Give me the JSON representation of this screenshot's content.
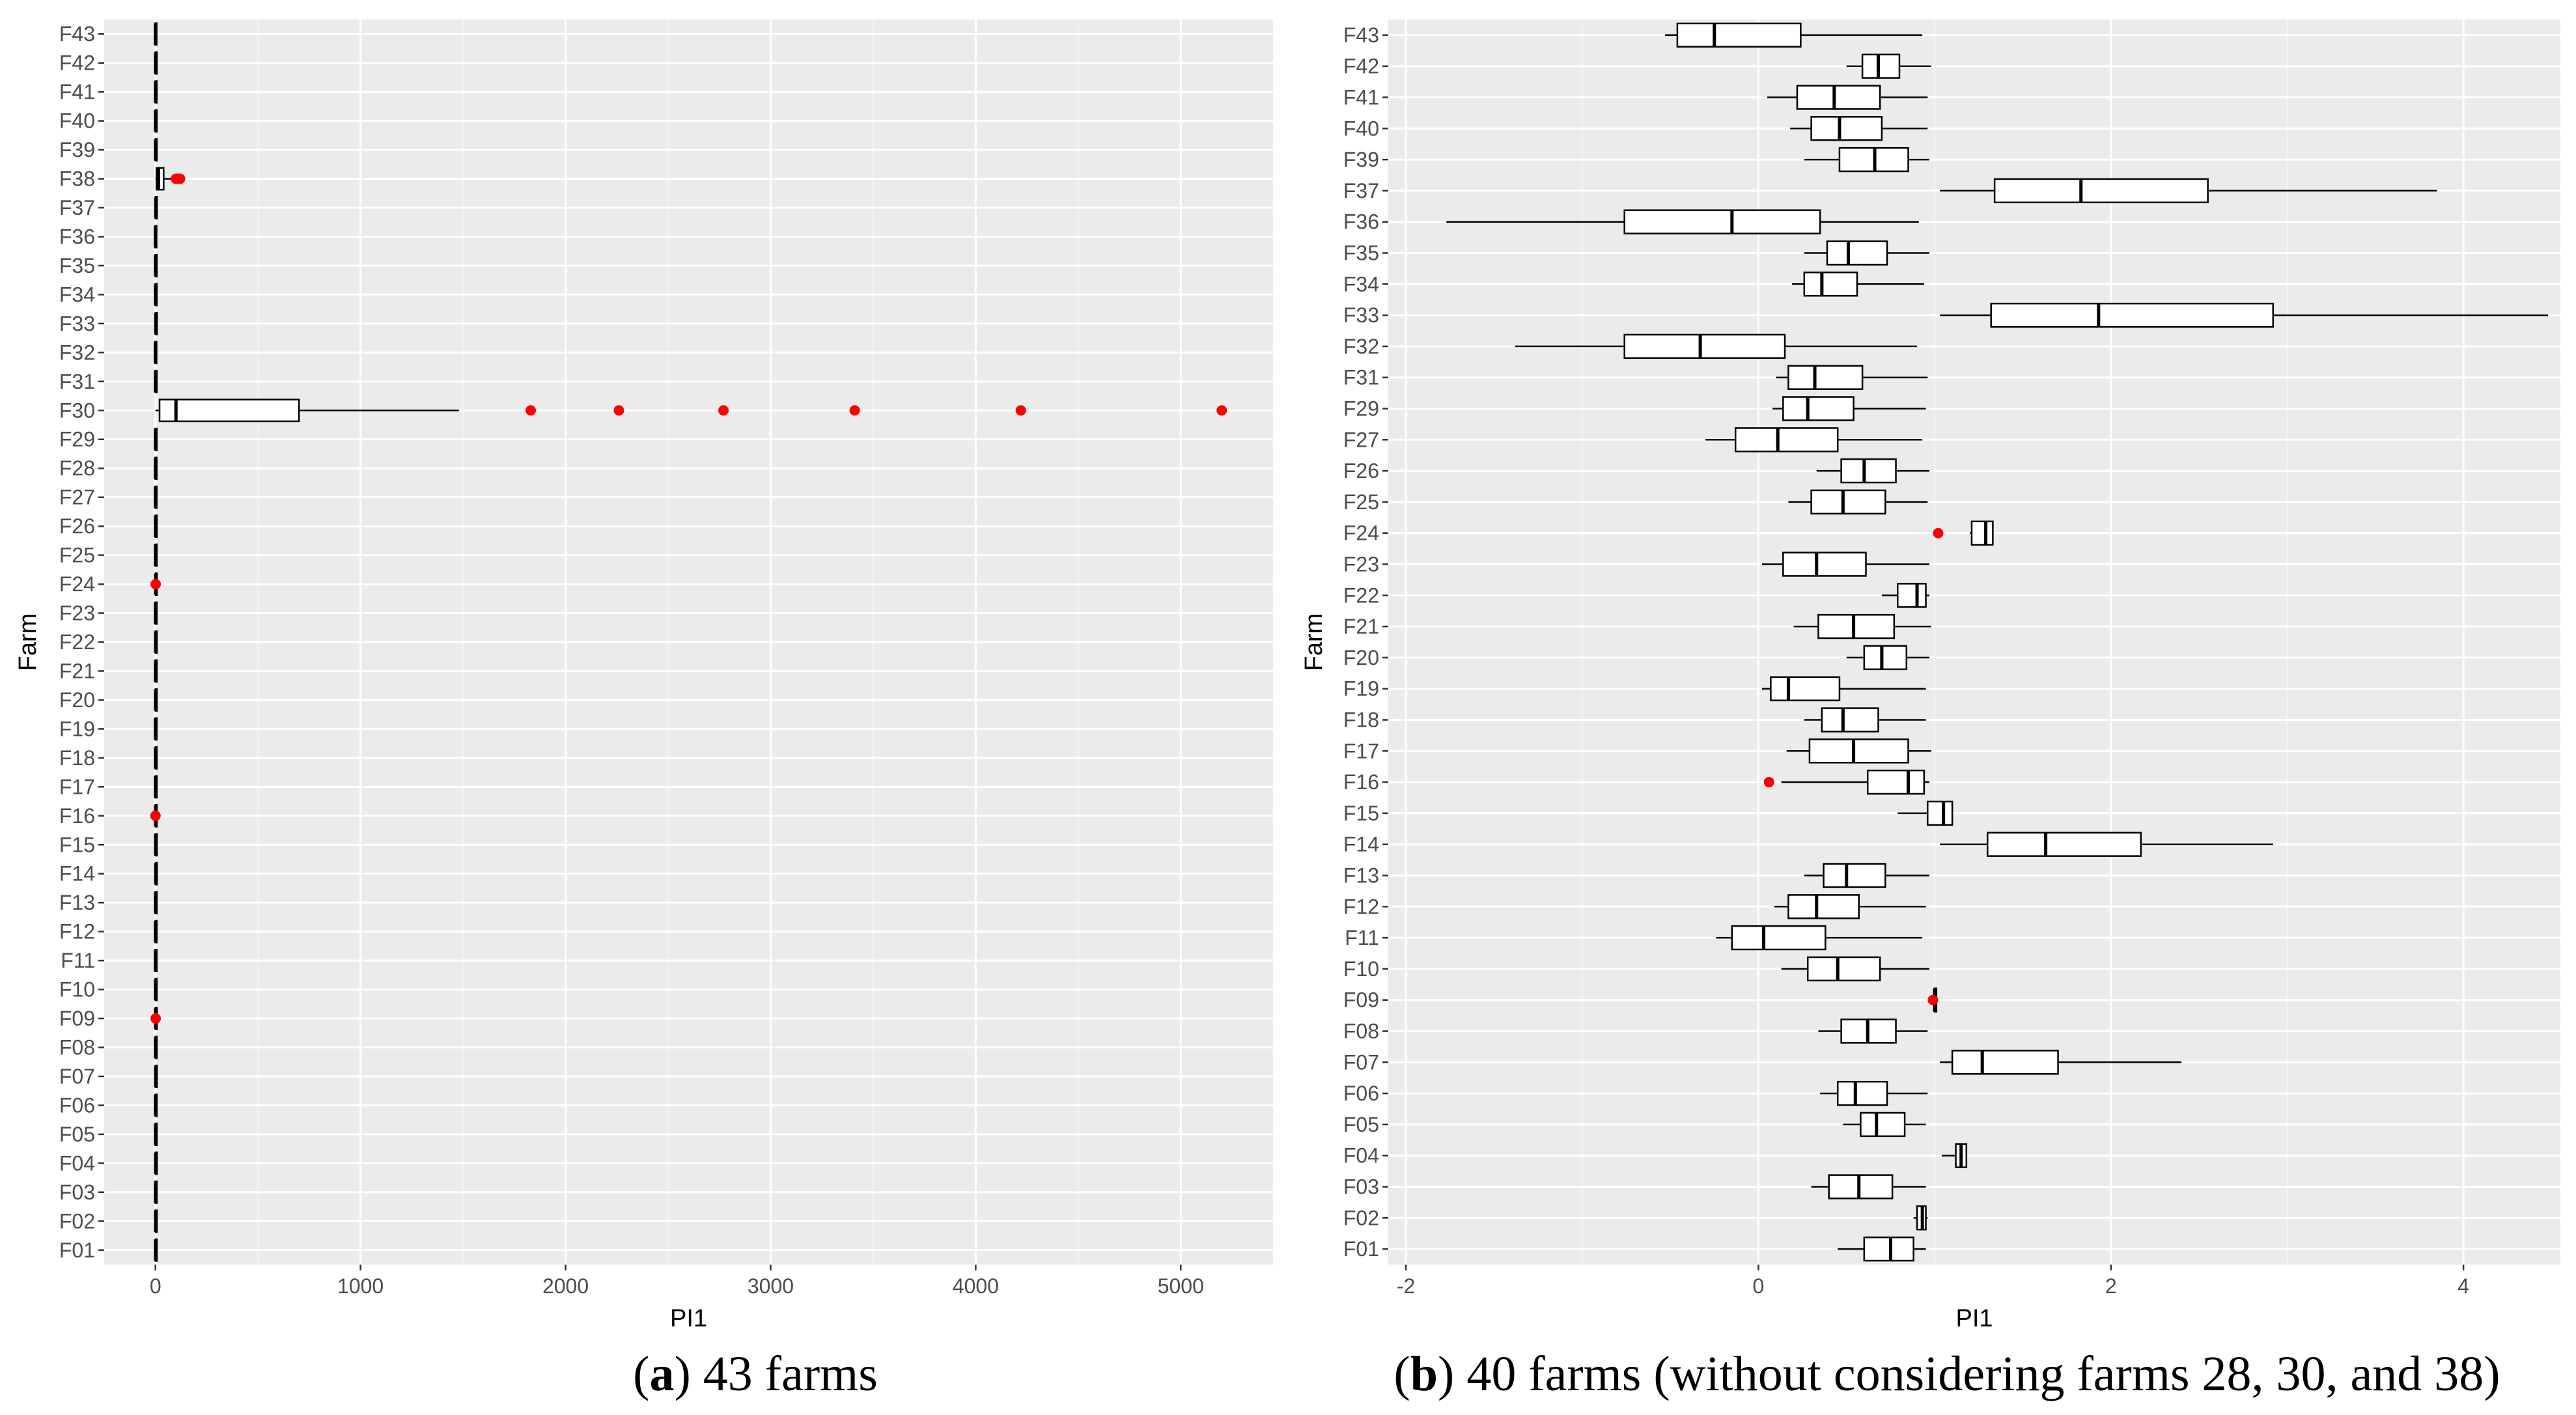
{
  "chart_data": [
    {
      "type": "boxplot",
      "orientation": "horizontal",
      "xlabel": "PI1",
      "ylabel": "Farm",
      "xlim": [
        -250,
        5450
      ],
      "xticks": [
        "0",
        "1000",
        "2000",
        "3000",
        "4000",
        "5000"
      ],
      "xtick_values": [
        0,
        1000,
        2000,
        3000,
        4000,
        5000
      ],
      "caption_letter": "a",
      "caption_text": " 43 farms",
      "categories": [
        "F01",
        "F02",
        "F03",
        "F04",
        "F05",
        "F06",
        "F07",
        "F08",
        "F09",
        "F10",
        "F11",
        "F12",
        "F13",
        "F14",
        "F15",
        "F16",
        "F17",
        "F18",
        "F19",
        "F20",
        "F21",
        "F22",
        "F23",
        "F24",
        "F25",
        "F26",
        "F27",
        "F28",
        "F29",
        "F30",
        "F31",
        "F32",
        "F33",
        "F34",
        "F35",
        "F36",
        "F37",
        "F38",
        "F39",
        "F40",
        "F41",
        "F42",
        "F43"
      ],
      "boxes": [
        {
          "farm": "F01",
          "min": -0.5,
          "q1": 0.5,
          "median": 0.7,
          "q3": 0.9,
          "max": 1.0,
          "outliers": []
        },
        {
          "farm": "F02",
          "min": 0.8,
          "q1": 0.9,
          "median": 0.92,
          "q3": 0.95,
          "max": 1.0,
          "outliers": []
        },
        {
          "farm": "F03",
          "min": 0.2,
          "q1": 0.4,
          "median": 0.5,
          "q3": 0.7,
          "max": 0.9,
          "outliers": []
        },
        {
          "farm": "F04",
          "min": 1.0,
          "q1": 1.1,
          "median": 1.15,
          "q3": 1.2,
          "max": 1.3,
          "outliers": []
        },
        {
          "farm": "F05",
          "min": 0.4,
          "q1": 0.5,
          "median": 0.6,
          "q3": 0.7,
          "max": 0.8,
          "outliers": []
        },
        {
          "farm": "F06",
          "min": 0.3,
          "q1": 0.4,
          "median": 0.5,
          "q3": 0.6,
          "max": 0.9,
          "outliers": []
        },
        {
          "farm": "F07",
          "min": 1.0,
          "q1": 1.1,
          "median": 1.3,
          "q3": 1.7,
          "max": 2.4,
          "outliers": []
        },
        {
          "farm": "F08",
          "min": 0.3,
          "q1": 0.4,
          "median": 0.6,
          "q3": 0.7,
          "max": 0.9,
          "outliers": []
        },
        {
          "farm": "F09",
          "min": 1.0,
          "q1": 1.0,
          "median": 1.0,
          "q3": 1.0,
          "max": 1.0,
          "outliers": [
            1.0
          ]
        },
        {
          "farm": "F10",
          "min": 0.1,
          "q1": 0.3,
          "median": 0.4,
          "q3": 0.6,
          "max": 0.9,
          "outliers": []
        },
        {
          "farm": "F11",
          "min": -0.3,
          "q1": -0.1,
          "median": 0.0,
          "q3": 0.3,
          "max": 0.9,
          "outliers": []
        },
        {
          "farm": "F12",
          "min": 0.0,
          "q1": 0.1,
          "median": 0.3,
          "q3": 0.5,
          "max": 0.9,
          "outliers": []
        },
        {
          "farm": "F13",
          "min": 0.2,
          "q1": 0.4,
          "median": 0.5,
          "q3": 0.6,
          "max": 0.9,
          "outliers": []
        },
        {
          "farm": "F14",
          "min": 1.0,
          "q1": 1.3,
          "median": 1.6,
          "q3": 2.2,
          "max": 2.9,
          "outliers": []
        },
        {
          "farm": "F15",
          "min": 0.8,
          "q1": 0.9,
          "median": 1.0,
          "q3": 1.1,
          "max": 1.1,
          "outliers": []
        },
        {
          "farm": "F16",
          "min": 0.1,
          "q1": 0.6,
          "median": 0.8,
          "q3": 0.9,
          "max": 1.0,
          "outliers": [
            0.05
          ]
        },
        {
          "farm": "F17",
          "min": 0.1,
          "q1": 0.3,
          "median": 0.5,
          "q3": 0.8,
          "max": 1.0,
          "outliers": []
        },
        {
          "farm": "F18",
          "min": 0.2,
          "q1": 0.3,
          "median": 0.4,
          "q3": 0.6,
          "max": 0.9,
          "outliers": []
        },
        {
          "farm": "F19",
          "min": 0.0,
          "q1": 0.0,
          "median": 0.1,
          "q3": 0.4,
          "max": 0.9,
          "outliers": []
        },
        {
          "farm": "F20",
          "min": 0.5,
          "q1": 0.6,
          "median": 0.7,
          "q3": 0.8,
          "max": 0.9,
          "outliers": []
        },
        {
          "farm": "F21",
          "min": 0.2,
          "q1": 0.3,
          "median": 0.5,
          "q3": 0.7,
          "max": 1.0,
          "outliers": []
        },
        {
          "farm": "F22",
          "min": 0.7,
          "q1": 0.8,
          "median": 0.9,
          "q3": 0.9,
          "max": 1.0,
          "outliers": []
        },
        {
          "farm": "F23",
          "min": 0.0,
          "q1": 0.1,
          "median": 0.3,
          "q3": 0.6,
          "max": 0.9,
          "outliers": []
        },
        {
          "farm": "F24",
          "min": 1.2,
          "q1": 1.2,
          "median": 1.3,
          "q3": 1.3,
          "max": 1.3,
          "outliers": [
            1.0
          ]
        },
        {
          "farm": "F25",
          "min": 0.2,
          "q1": 0.3,
          "median": 0.5,
          "q3": 0.7,
          "max": 0.9,
          "outliers": []
        },
        {
          "farm": "F26",
          "min": 0.3,
          "q1": 0.5,
          "median": 0.6,
          "q3": 0.7,
          "max": 0.9,
          "outliers": []
        },
        {
          "farm": "F27",
          "min": -0.3,
          "q1": -0.1,
          "median": 0.1,
          "q3": 0.4,
          "max": 0.9,
          "outliers": []
        },
        {
          "farm": "F28",
          "min": 0.0,
          "q1": 0.0,
          "median": 0.0,
          "q3": 0.0,
          "max": 0.0,
          "outliers": []
        },
        {
          "farm": "F29",
          "min": 0.1,
          "q1": 0.1,
          "median": 0.3,
          "q3": 0.5,
          "max": 0.9,
          "outliers": []
        },
        {
          "farm": "F30",
          "min": 0,
          "q1": 20,
          "median": 100,
          "q3": 700,
          "max": 1480,
          "outliers": [
            1830,
            2260,
            2770,
            3410,
            4220,
            5200
          ]
        },
        {
          "farm": "F31",
          "min": 0.1,
          "q1": 0.2,
          "median": 0.3,
          "q3": 0.6,
          "max": 0.9,
          "outliers": []
        },
        {
          "farm": "F32",
          "min": -1.4,
          "q1": -0.8,
          "median": -0.4,
          "q3": 0.1,
          "max": 0.9,
          "outliers": []
        },
        {
          "farm": "F33",
          "min": 1.0,
          "q1": 1.3,
          "median": 1.9,
          "q3": 2.9,
          "max": 4.5,
          "outliers": []
        },
        {
          "farm": "F34",
          "min": 0.2,
          "q1": 0.3,
          "median": 0.4,
          "q3": 0.6,
          "max": 0.9,
          "outliers": []
        },
        {
          "farm": "F35",
          "min": 0.3,
          "q1": 0.4,
          "median": 0.5,
          "q3": 0.7,
          "max": 1.0,
          "outliers": []
        },
        {
          "farm": "F36",
          "min": -1.8,
          "q1": -0.8,
          "median": -0.2,
          "q3": 0.4,
          "max": 0.9,
          "outliers": []
        },
        {
          "farm": "F37",
          "min": 1.0,
          "q1": 1.3,
          "median": 1.8,
          "q3": 2.5,
          "max": 3.8,
          "outliers": []
        },
        {
          "farm": "F38",
          "min": 0,
          "q1": 5,
          "median": 15,
          "q3": 40,
          "max": 80,
          "outliers": [
            100,
            110,
            120
          ]
        },
        {
          "farm": "F39",
          "min": 0.3,
          "q1": 0.5,
          "median": 0.6,
          "q3": 0.8,
          "max": 0.9,
          "outliers": []
        },
        {
          "farm": "F40",
          "min": 0.2,
          "q1": 0.3,
          "median": 0.4,
          "q3": 0.7,
          "max": 0.9,
          "outliers": []
        },
        {
          "farm": "F41",
          "min": 0.1,
          "q1": 0.2,
          "median": 0.4,
          "q3": 0.7,
          "max": 0.9,
          "outliers": []
        },
        {
          "farm": "F42",
          "min": 0.5,
          "q1": 0.6,
          "median": 0.7,
          "q3": 0.8,
          "max": 1.0,
          "outliers": []
        },
        {
          "farm": "F43",
          "min": -0.6,
          "q1": -0.5,
          "median": -0.3,
          "q3": 0.2,
          "max": 0.9,
          "outliers": []
        }
      ]
    },
    {
      "type": "boxplot",
      "orientation": "horizontal",
      "xlabel": "PI1",
      "ylabel": "Farm",
      "xlim": [
        -2.1,
        4.55
      ],
      "xticks": [
        "-2",
        "0",
        "2",
        "4"
      ],
      "xtick_values": [
        -2,
        0,
        2,
        4
      ],
      "caption_letter": "b",
      "caption_text": " 40 farms (without considering farms 28, 30, and 38)",
      "categories": [
        "F01",
        "F02",
        "F03",
        "F04",
        "F05",
        "F06",
        "F07",
        "F08",
        "F09",
        "F10",
        "F11",
        "F12",
        "F13",
        "F14",
        "F15",
        "F16",
        "F17",
        "F18",
        "F19",
        "F20",
        "F21",
        "F22",
        "F23",
        "F24",
        "F25",
        "F26",
        "F27",
        "F29",
        "F31",
        "F32",
        "F33",
        "F34",
        "F35",
        "F36",
        "F37",
        "F39",
        "F40",
        "F41",
        "F42",
        "F43"
      ],
      "boxes": [
        {
          "farm": "F01",
          "min": 0.45,
          "q1": 0.6,
          "median": 0.75,
          "q3": 0.88,
          "max": 0.95,
          "outliers": []
        },
        {
          "farm": "F02",
          "min": 0.88,
          "q1": 0.9,
          "median": 0.93,
          "q3": 0.95,
          "max": 0.96,
          "outliers": []
        },
        {
          "farm": "F03",
          "min": 0.3,
          "q1": 0.4,
          "median": 0.57,
          "q3": 0.76,
          "max": 0.95,
          "outliers": []
        },
        {
          "farm": "F04",
          "min": 1.04,
          "q1": 1.12,
          "median": 1.15,
          "q3": 1.18,
          "max": 1.18,
          "outliers": []
        },
        {
          "farm": "F05",
          "min": 0.48,
          "q1": 0.58,
          "median": 0.67,
          "q3": 0.83,
          "max": 0.95,
          "outliers": []
        },
        {
          "farm": "F06",
          "min": 0.35,
          "q1": 0.45,
          "median": 0.55,
          "q3": 0.73,
          "max": 0.96,
          "outliers": []
        },
        {
          "farm": "F07",
          "min": 1.03,
          "q1": 1.1,
          "median": 1.27,
          "q3": 1.7,
          "max": 2.4,
          "outliers": []
        },
        {
          "farm": "F08",
          "min": 0.34,
          "q1": 0.47,
          "median": 0.62,
          "q3": 0.78,
          "max": 0.96,
          "outliers": []
        },
        {
          "farm": "F09",
          "min": 1.0,
          "q1": 1.0,
          "median": 1.0,
          "q3": 1.01,
          "max": 1.01,
          "outliers": [
            0.99
          ]
        },
        {
          "farm": "F10",
          "min": 0.13,
          "q1": 0.28,
          "median": 0.45,
          "q3": 0.69,
          "max": 0.97,
          "outliers": []
        },
        {
          "farm": "F11",
          "min": -0.24,
          "q1": -0.15,
          "median": 0.03,
          "q3": 0.38,
          "max": 0.93,
          "outliers": []
        },
        {
          "farm": "F12",
          "min": 0.09,
          "q1": 0.17,
          "median": 0.33,
          "q3": 0.57,
          "max": 0.95,
          "outliers": []
        },
        {
          "farm": "F13",
          "min": 0.26,
          "q1": 0.37,
          "median": 0.5,
          "q3": 0.72,
          "max": 0.97,
          "outliers": []
        },
        {
          "farm": "F14",
          "min": 1.03,
          "q1": 1.3,
          "median": 1.63,
          "q3": 2.17,
          "max": 2.92,
          "outliers": []
        },
        {
          "farm": "F15",
          "min": 0.79,
          "q1": 0.96,
          "median": 1.05,
          "q3": 1.1,
          "max": 1.1,
          "outliers": []
        },
        {
          "farm": "F16",
          "min": 0.13,
          "q1": 0.62,
          "median": 0.85,
          "q3": 0.94,
          "max": 0.97,
          "outliers": [
            0.06
          ]
        },
        {
          "farm": "F17",
          "min": 0.16,
          "q1": 0.29,
          "median": 0.54,
          "q3": 0.85,
          "max": 0.98,
          "outliers": []
        },
        {
          "farm": "F18",
          "min": 0.26,
          "q1": 0.36,
          "median": 0.48,
          "q3": 0.68,
          "max": 0.95,
          "outliers": []
        },
        {
          "farm": "F19",
          "min": 0.02,
          "q1": 0.07,
          "median": 0.17,
          "q3": 0.46,
          "max": 0.95,
          "outliers": []
        },
        {
          "farm": "F20",
          "min": 0.5,
          "q1": 0.6,
          "median": 0.7,
          "q3": 0.84,
          "max": 0.97,
          "outliers": []
        },
        {
          "farm": "F21",
          "min": 0.2,
          "q1": 0.34,
          "median": 0.54,
          "q3": 0.77,
          "max": 0.98,
          "outliers": []
        },
        {
          "farm": "F22",
          "min": 0.7,
          "q1": 0.79,
          "median": 0.9,
          "q3": 0.95,
          "max": 0.97,
          "outliers": []
        },
        {
          "farm": "F23",
          "min": 0.02,
          "q1": 0.14,
          "median": 0.33,
          "q3": 0.61,
          "max": 0.97,
          "outliers": []
        },
        {
          "farm": "F24",
          "min": 1.2,
          "q1": 1.21,
          "median": 1.29,
          "q3": 1.33,
          "max": 1.33,
          "outliers": [
            1.02
          ]
        },
        {
          "farm": "F25",
          "min": 0.17,
          "q1": 0.3,
          "median": 0.48,
          "q3": 0.72,
          "max": 0.96,
          "outliers": []
        },
        {
          "farm": "F26",
          "min": 0.33,
          "q1": 0.47,
          "median": 0.6,
          "q3": 0.78,
          "max": 0.97,
          "outliers": []
        },
        {
          "farm": "F27",
          "min": -0.3,
          "q1": -0.13,
          "median": 0.11,
          "q3": 0.45,
          "max": 0.93,
          "outliers": []
        },
        {
          "farm": "F29",
          "min": 0.08,
          "q1": 0.14,
          "median": 0.28,
          "q3": 0.54,
          "max": 0.95,
          "outliers": []
        },
        {
          "farm": "F31",
          "min": 0.1,
          "q1": 0.17,
          "median": 0.32,
          "q3": 0.59,
          "max": 0.96,
          "outliers": []
        },
        {
          "farm": "F32",
          "min": -1.38,
          "q1": -0.76,
          "median": -0.33,
          "q3": 0.15,
          "max": 0.9,
          "outliers": []
        },
        {
          "farm": "F33",
          "min": 1.03,
          "q1": 1.32,
          "median": 1.93,
          "q3": 2.92,
          "max": 4.48,
          "outliers": []
        },
        {
          "farm": "F34",
          "min": 0.19,
          "q1": 0.26,
          "median": 0.36,
          "q3": 0.56,
          "max": 0.94,
          "outliers": []
        },
        {
          "farm": "F35",
          "min": 0.26,
          "q1": 0.39,
          "median": 0.51,
          "q3": 0.73,
          "max": 0.97,
          "outliers": []
        },
        {
          "farm": "F36",
          "min": -1.77,
          "q1": -0.76,
          "median": -0.15,
          "q3": 0.35,
          "max": 0.91,
          "outliers": []
        },
        {
          "farm": "F37",
          "min": 1.03,
          "q1": 1.34,
          "median": 1.83,
          "q3": 2.55,
          "max": 3.85,
          "outliers": []
        },
        {
          "farm": "F39",
          "min": 0.26,
          "q1": 0.46,
          "median": 0.66,
          "q3": 0.85,
          "max": 0.97,
          "outliers": []
        },
        {
          "farm": "F40",
          "min": 0.18,
          "q1": 0.3,
          "median": 0.46,
          "q3": 0.7,
          "max": 0.96,
          "outliers": []
        },
        {
          "farm": "F41",
          "min": 0.05,
          "q1": 0.22,
          "median": 0.43,
          "q3": 0.69,
          "max": 0.96,
          "outliers": []
        },
        {
          "farm": "F42",
          "min": 0.5,
          "q1": 0.59,
          "median": 0.68,
          "q3": 0.8,
          "max": 0.98,
          "outliers": []
        },
        {
          "farm": "F43",
          "min": -0.53,
          "q1": -0.46,
          "median": -0.25,
          "q3": 0.24,
          "max": 0.93,
          "outliers": []
        }
      ]
    }
  ],
  "colors": {
    "panel_bg": "#ebebeb",
    "grid_major": "#ffffff",
    "box_stroke": "#000000",
    "box_fill": "#ffffff",
    "outlier": "#ff0000"
  }
}
